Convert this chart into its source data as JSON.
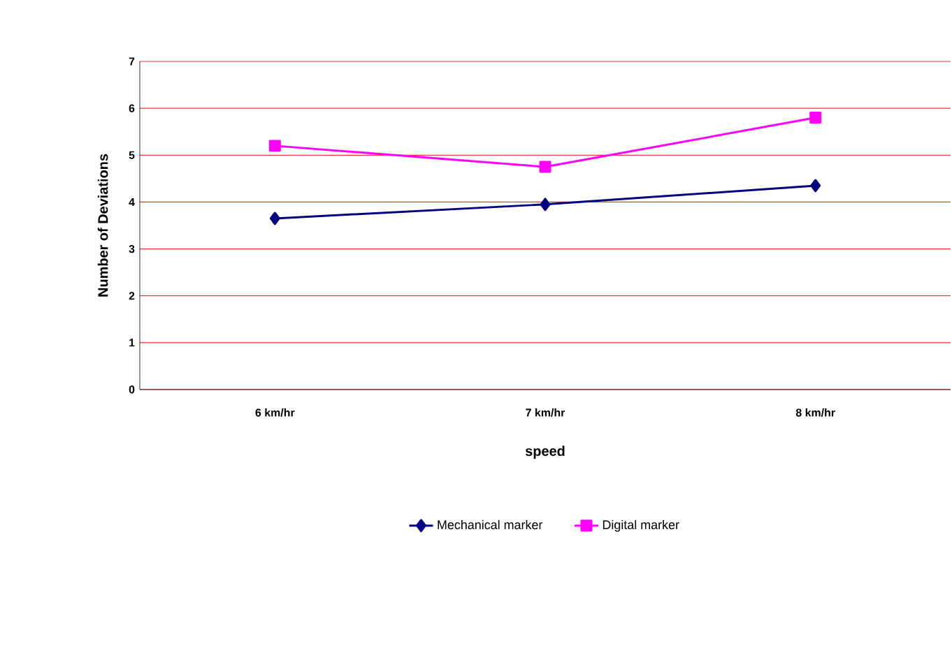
{
  "chart_data": {
    "type": "line",
    "xlabel": "speed",
    "ylabel": "Number of Deviations",
    "categories": [
      "6 km/hr",
      "7 km/hr",
      "8 km/hr"
    ],
    "series": [
      {
        "name": "Mechanical marker",
        "color": "#000080",
        "marker": "diamond",
        "values": [
          3.65,
          3.95,
          4.35
        ]
      },
      {
        "name": "Digital marker",
        "color": "#ff00ff",
        "marker": "square",
        "values": [
          5.2,
          4.75,
          5.8
        ]
      }
    ],
    "ylim": [
      0,
      7
    ],
    "yticks": [
      0,
      1,
      2,
      3,
      4,
      5,
      6,
      7
    ],
    "grid": "y",
    "legend": "bottom"
  }
}
